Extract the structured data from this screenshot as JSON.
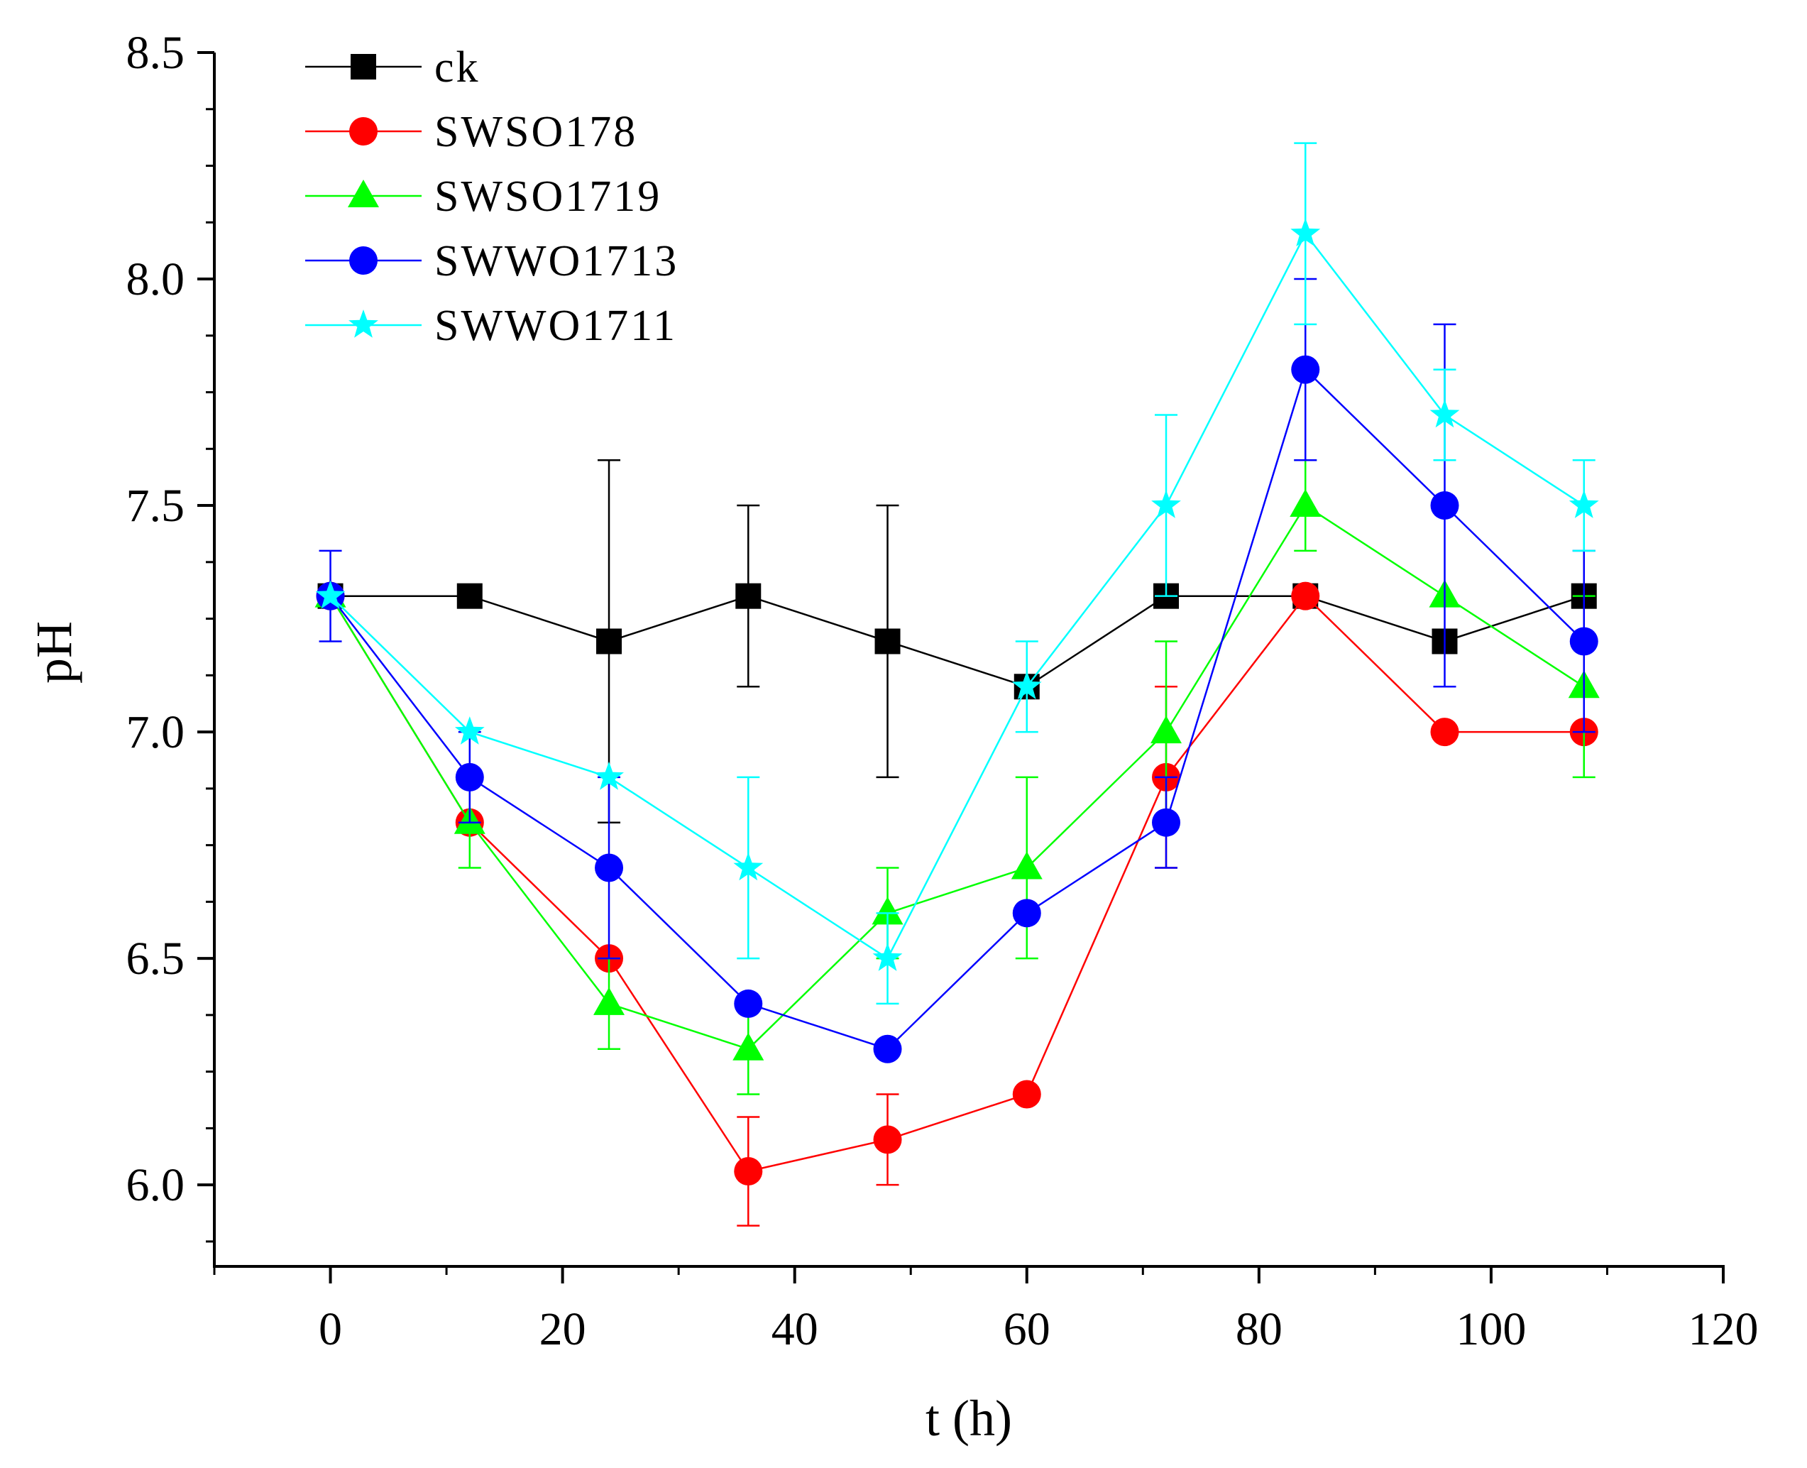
{
  "chart_data": {
    "type": "line",
    "title": "",
    "xlabel": "t (h)",
    "ylabel": "pH",
    "xlim": [
      -10,
      120
    ],
    "ylim": [
      5.82,
      8.5
    ],
    "xticks": [
      0,
      20,
      40,
      60,
      80,
      100,
      120
    ],
    "xtick_labels": [
      "0",
      "20",
      "40",
      "60",
      "80",
      "100",
      "120"
    ],
    "yticks": [
      6.0,
      6.5,
      7.0,
      7.5,
      8.0,
      8.5
    ],
    "ytick_labels": [
      "6.0",
      "6.5",
      "7.0",
      "7.5",
      "8.0",
      "8.5"
    ],
    "x": [
      0,
      12,
      24,
      36,
      48,
      60,
      72,
      84,
      96,
      108
    ],
    "legend_position": "top-left",
    "series": [
      {
        "name": "ck",
        "color": "#000000",
        "marker": "square",
        "values": [
          7.3,
          7.3,
          7.2,
          7.3,
          7.2,
          7.1,
          7.3,
          7.3,
          7.2,
          7.3
        ],
        "errors": [
          0.0,
          0.0,
          0.4,
          0.2,
          0.3,
          0.0,
          0.0,
          0.0,
          0.0,
          0.0
        ]
      },
      {
        "name": "SWSO178",
        "color": "#ff0000",
        "marker": "circle",
        "values": [
          7.3,
          6.8,
          6.5,
          6.03,
          6.1,
          6.2,
          6.9,
          7.3,
          7.0,
          7.0
        ],
        "errors": [
          0.0,
          0.0,
          0.0,
          0.12,
          0.1,
          0.0,
          0.2,
          0.0,
          0.0,
          0.0
        ]
      },
      {
        "name": "SWSO1719",
        "color": "#00ff00",
        "marker": "triangle",
        "values": [
          7.3,
          6.8,
          6.4,
          6.3,
          6.6,
          6.7,
          7.0,
          7.5,
          7.3,
          7.1
        ],
        "errors": [
          0.0,
          0.1,
          0.1,
          0.1,
          0.1,
          0.2,
          0.2,
          0.1,
          0.0,
          0.2
        ]
      },
      {
        "name": "SWWO1713",
        "color": "#0000ff",
        "marker": "circle",
        "values": [
          7.3,
          6.9,
          6.7,
          6.4,
          6.3,
          6.6,
          6.8,
          7.8,
          7.5,
          7.2
        ],
        "errors": [
          0.1,
          0.1,
          0.2,
          0.0,
          0.0,
          0.0,
          0.1,
          0.2,
          0.4,
          0.2
        ]
      },
      {
        "name": "SWWO1711",
        "color": "#00ffff",
        "marker": "star",
        "values": [
          7.3,
          7.0,
          6.9,
          6.7,
          6.5,
          7.1,
          7.5,
          8.1,
          7.7,
          7.5
        ],
        "errors": [
          0.0,
          0.0,
          0.0,
          0.2,
          0.1,
          0.1,
          0.2,
          0.2,
          0.1,
          0.1
        ]
      }
    ]
  }
}
